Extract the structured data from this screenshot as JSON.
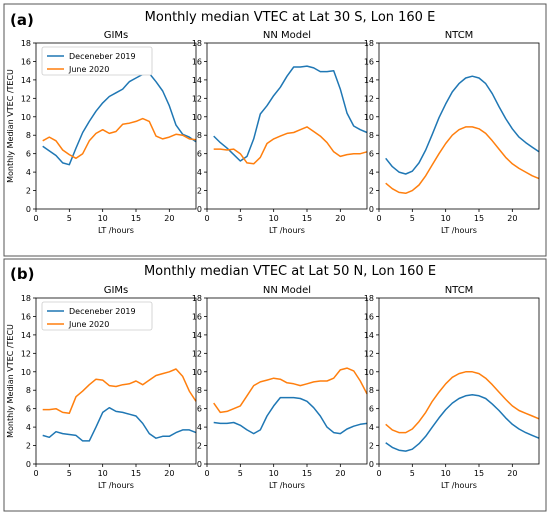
{
  "colors": {
    "dec2019": "#1f77b4",
    "jun2020": "#ff7f0e"
  },
  "chart_data": [
    {
      "type": "line",
      "panel_tag": "(a)",
      "title": "Monthly median VTEC at Lat 30 S, Lon 160 E",
      "ylabel": "Monthly Median VTEC /TECU",
      "xlabel": "LT /hours",
      "xlim": [
        0,
        24
      ],
      "ylim": [
        0,
        18
      ],
      "xticks": [
        0,
        5,
        10,
        15,
        20
      ],
      "yticks": [
        0,
        2,
        4,
        6,
        8,
        10,
        12,
        14,
        16,
        18
      ],
      "legend_placement": "upper-left (first subplot)",
      "subplots": [
        {
          "title": "GIMs",
          "series": [
            {
              "name": "Deceneber 2019",
              "color_key": "dec2019",
              "x": [
                1,
                2,
                3,
                4,
                5,
                6,
                7,
                8,
                9,
                10,
                11,
                12,
                13,
                14,
                15,
                16,
                17,
                18,
                19,
                20,
                21,
                22,
                23,
                24
              ],
              "y": [
                6.8,
                6.3,
                5.8,
                5.0,
                4.8,
                6.6,
                8.3,
                9.5,
                10.6,
                11.5,
                12.2,
                12.6,
                13.0,
                13.8,
                14.2,
                14.6,
                14.7,
                13.8,
                12.8,
                11.2,
                9.1,
                8.1,
                7.8,
                7.3
              ]
            },
            {
              "name": "June 2020",
              "color_key": "jun2020",
              "x": [
                1,
                2,
                3,
                4,
                5,
                6,
                7,
                8,
                9,
                10,
                11,
                12,
                13,
                14,
                15,
                16,
                17,
                18,
                19,
                20,
                21,
                22,
                23,
                24
              ],
              "y": [
                7.4,
                7.8,
                7.4,
                6.4,
                5.9,
                5.5,
                6.0,
                7.4,
                8.2,
                8.6,
                8.2,
                8.4,
                9.2,
                9.3,
                9.5,
                9.8,
                9.5,
                7.9,
                7.6,
                7.8,
                8.1,
                8.0,
                7.6,
                7.5
              ]
            }
          ]
        },
        {
          "title": "NN Model",
          "series": [
            {
              "name": "Deceneber 2019",
              "color_key": "dec2019",
              "x": [
                1,
                2,
                3,
                4,
                5,
                6,
                7,
                8,
                9,
                10,
                11,
                12,
                13,
                14,
                15,
                16,
                17,
                18,
                19,
                20,
                21,
                22,
                23,
                24
              ],
              "y": [
                7.9,
                7.2,
                6.6,
                5.9,
                5.2,
                5.7,
                7.6,
                10.3,
                11.2,
                12.3,
                13.2,
                14.4,
                15.4,
                15.4,
                15.5,
                15.3,
                14.9,
                14.9,
                15.0,
                13.0,
                10.4,
                9.0,
                8.6,
                8.3
              ]
            },
            {
              "name": "June 2020",
              "color_key": "jun2020",
              "x": [
                1,
                2,
                3,
                4,
                5,
                6,
                7,
                8,
                9,
                10,
                11,
                12,
                13,
                14,
                15,
                16,
                17,
                18,
                19,
                20,
                21,
                22,
                23,
                24
              ],
              "y": [
                6.5,
                6.5,
                6.4,
                6.5,
                6.0,
                5.0,
                4.9,
                5.6,
                7.1,
                7.6,
                7.9,
                8.2,
                8.3,
                8.6,
                8.9,
                8.4,
                7.9,
                7.2,
                6.2,
                5.7,
                5.9,
                6.0,
                6.0,
                6.2
              ]
            }
          ]
        },
        {
          "title": "NTCM",
          "series": [
            {
              "name": "Deceneber 2019",
              "color_key": "dec2019",
              "x": [
                1,
                2,
                3,
                4,
                5,
                6,
                7,
                8,
                9,
                10,
                11,
                12,
                13,
                14,
                15,
                16,
                17,
                18,
                19,
                20,
                21,
                22,
                23,
                24
              ],
              "y": [
                5.5,
                4.6,
                4.0,
                3.8,
                4.1,
                5.0,
                6.4,
                8.1,
                9.9,
                11.4,
                12.7,
                13.6,
                14.2,
                14.4,
                14.2,
                13.6,
                12.5,
                11.1,
                9.8,
                8.7,
                7.8,
                7.2,
                6.7,
                6.2
              ]
            },
            {
              "name": "June 2020",
              "color_key": "jun2020",
              "x": [
                1,
                2,
                3,
                4,
                5,
                6,
                7,
                8,
                9,
                10,
                11,
                12,
                13,
                14,
                15,
                16,
                17,
                18,
                19,
                20,
                21,
                22,
                23,
                24
              ],
              "y": [
                2.8,
                2.2,
                1.8,
                1.7,
                2.0,
                2.6,
                3.6,
                4.8,
                6.0,
                7.1,
                8.0,
                8.6,
                8.9,
                8.9,
                8.7,
                8.2,
                7.4,
                6.5,
                5.6,
                4.9,
                4.4,
                4.0,
                3.6,
                3.3
              ]
            }
          ]
        }
      ]
    },
    {
      "type": "line",
      "panel_tag": "(b)",
      "title": "Monthly median VTEC at Lat 50 N, Lon 160 E",
      "ylabel": "Monthly Median VTEC /TECU",
      "xlabel": "LT /hours",
      "xlim": [
        0,
        24
      ],
      "ylim": [
        0,
        18
      ],
      "xticks": [
        0,
        5,
        10,
        15,
        20
      ],
      "yticks": [
        0,
        2,
        4,
        6,
        8,
        10,
        12,
        14,
        16,
        18
      ],
      "legend_placement": "upper-left (first subplot)",
      "subplots": [
        {
          "title": "GIMs",
          "series": [
            {
              "name": "Deceneber 2019",
              "color_key": "dec2019",
              "x": [
                1,
                2,
                3,
                4,
                5,
                6,
                7,
                8,
                9,
                10,
                11,
                12,
                13,
                14,
                15,
                16,
                17,
                18,
                19,
                20,
                21,
                22,
                23,
                24
              ],
              "y": [
                3.1,
                2.9,
                3.5,
                3.3,
                3.2,
                3.1,
                2.5,
                2.5,
                4.0,
                5.6,
                6.1,
                5.7,
                5.6,
                5.4,
                5.2,
                4.4,
                3.3,
                2.8,
                3.0,
                3.0,
                3.4,
                3.7,
                3.7,
                3.4
              ]
            },
            {
              "name": "June 2020",
              "color_key": "jun2020",
              "x": [
                1,
                2,
                3,
                4,
                5,
                6,
                7,
                8,
                9,
                10,
                11,
                12,
                13,
                14,
                15,
                16,
                17,
                18,
                19,
                20,
                21,
                22,
                23,
                24
              ],
              "y": [
                5.9,
                5.9,
                6.0,
                5.6,
                5.5,
                7.3,
                7.9,
                8.6,
                9.2,
                9.1,
                8.5,
                8.4,
                8.6,
                8.7,
                9.0,
                8.6,
                9.1,
                9.6,
                9.8,
                10.0,
                10.3,
                9.5,
                7.9,
                6.8
              ]
            }
          ]
        },
        {
          "title": "NN Model",
          "series": [
            {
              "name": "Deceneber 2019",
              "color_key": "dec2019",
              "x": [
                1,
                2,
                3,
                4,
                5,
                6,
                7,
                8,
                9,
                10,
                11,
                12,
                13,
                14,
                15,
                16,
                17,
                18,
                19,
                20,
                21,
                22,
                23,
                24
              ],
              "y": [
                4.5,
                4.4,
                4.4,
                4.5,
                4.2,
                3.7,
                3.3,
                3.7,
                5.2,
                6.3,
                7.2,
                7.2,
                7.2,
                7.1,
                6.8,
                6.1,
                5.2,
                4.0,
                3.4,
                3.3,
                3.8,
                4.1,
                4.3,
                4.4
              ]
            },
            {
              "name": "June 2020",
              "color_key": "jun2020",
              "x": [
                1,
                2,
                3,
                4,
                5,
                6,
                7,
                8,
                9,
                10,
                11,
                12,
                13,
                14,
                15,
                16,
                17,
                18,
                19,
                20,
                21,
                22,
                23,
                24
              ],
              "y": [
                6.6,
                5.6,
                5.7,
                6.0,
                6.3,
                7.4,
                8.5,
                8.9,
                9.1,
                9.3,
                9.2,
                8.8,
                8.7,
                8.5,
                8.7,
                8.9,
                9.0,
                9.0,
                9.3,
                10.2,
                10.4,
                10.1,
                9.0,
                7.6
              ]
            }
          ]
        },
        {
          "title": "NTCM",
          "series": [
            {
              "name": "Deceneber 2019",
              "color_key": "dec2019",
              "x": [
                1,
                2,
                3,
                4,
                5,
                6,
                7,
                8,
                9,
                10,
                11,
                12,
                13,
                14,
                15,
                16,
                17,
                18,
                19,
                20,
                21,
                22,
                23,
                24
              ],
              "y": [
                2.3,
                1.8,
                1.5,
                1.4,
                1.6,
                2.2,
                3.0,
                4.0,
                5.0,
                5.9,
                6.6,
                7.1,
                7.4,
                7.5,
                7.4,
                7.1,
                6.5,
                5.8,
                5.0,
                4.3,
                3.8,
                3.4,
                3.1,
                2.8
              ]
            },
            {
              "name": "June 2020",
              "color_key": "jun2020",
              "x": [
                1,
                2,
                3,
                4,
                5,
                6,
                7,
                8,
                9,
                10,
                11,
                12,
                13,
                14,
                15,
                16,
                17,
                18,
                19,
                20,
                21,
                22,
                23,
                24
              ],
              "y": [
                4.3,
                3.7,
                3.4,
                3.4,
                3.8,
                4.6,
                5.6,
                6.8,
                7.8,
                8.7,
                9.4,
                9.8,
                10.0,
                10.0,
                9.8,
                9.3,
                8.6,
                7.8,
                7.0,
                6.3,
                5.8,
                5.5,
                5.2,
                4.9
              ]
            }
          ]
        }
      ]
    }
  ]
}
